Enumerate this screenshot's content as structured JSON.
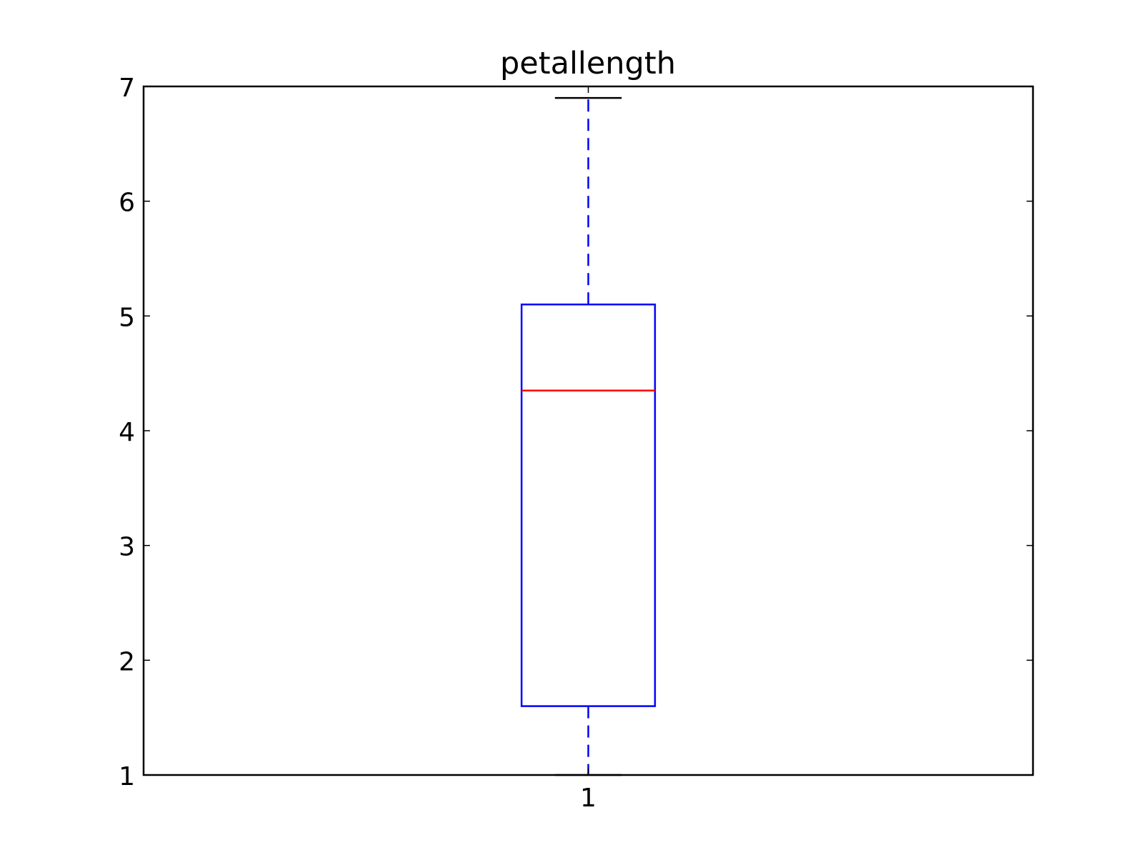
{
  "chart_data": {
    "type": "box",
    "title": "petallength",
    "xlabel": "",
    "ylabel": "",
    "ylim": [
      1,
      7
    ],
    "y_ticks": [
      "1",
      "2",
      "3",
      "4",
      "5",
      "6",
      "7"
    ],
    "categories": [
      "1"
    ],
    "boxes": [
      {
        "category": "1",
        "whisker_low": 1.0,
        "q1": 1.6,
        "median": 4.35,
        "q3": 5.1,
        "whisker_high": 6.9
      }
    ],
    "grid": false,
    "colors": {
      "box": "#0000ff",
      "whisker": "#0000ff",
      "median": "#ff0000",
      "cap": "#000000",
      "axes": "#000000"
    }
  }
}
